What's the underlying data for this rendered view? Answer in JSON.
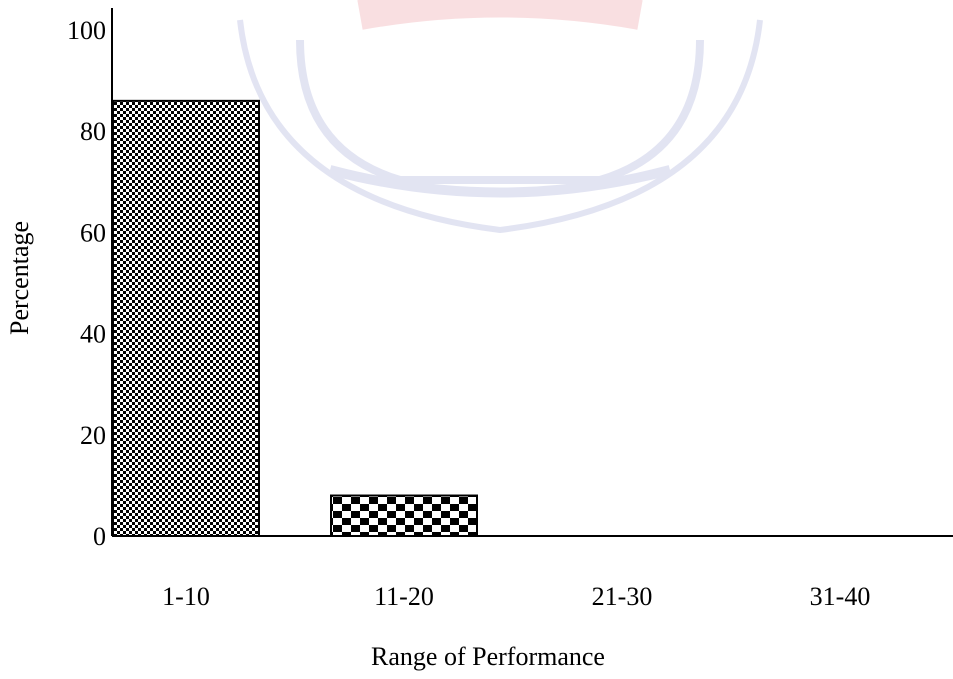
{
  "chart_data": {
    "type": "bar",
    "categories": [
      "1-10",
      "11-20",
      "21-30",
      "31-40"
    ],
    "values": [
      86,
      8,
      0,
      0
    ],
    "xlabel": "Range of Performance",
    "ylabel": "Percentage",
    "ylim": [
      0,
      100
    ],
    "yticks": [
      0,
      20,
      40,
      60,
      80,
      100
    ],
    "grid": false,
    "colors": {
      "bar_fill_dark": "#000000",
      "bar_fill_light": "#ffffff",
      "axis": "#000000",
      "watermark_red": "#e5737a",
      "watermark_blue": "#7f86c9"
    }
  }
}
